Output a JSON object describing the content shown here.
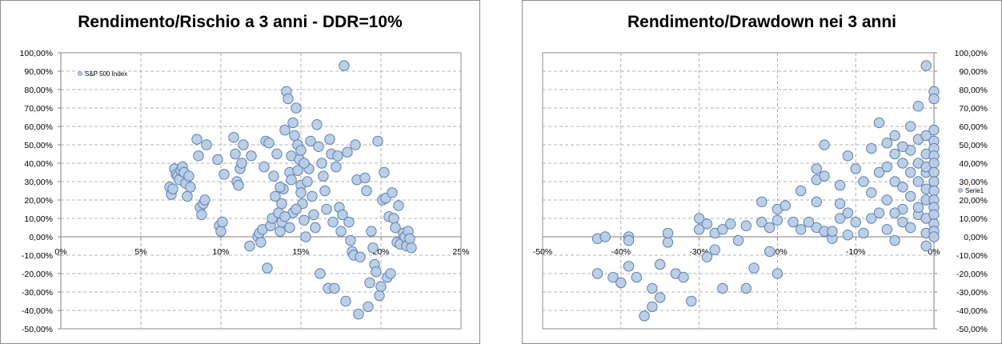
{
  "chart_data": [
    {
      "type": "scatter",
      "title": "Rendimento/Rischio a 3 anni - DDR=10%",
      "xlabel": "",
      "ylabel": "",
      "xlim": [
        0,
        0.25
      ],
      "ylim": [
        -0.5,
        1.0
      ],
      "x_ticks": [
        "0%",
        "5%",
        "10%",
        "15%",
        "20%",
        "25%"
      ],
      "y_ticks": [
        "100,00%",
        "90,00%",
        "80,00%",
        "70,00%",
        "60,00%",
        "50,00%",
        "40,00%",
        "30,00%",
        "20,00%",
        "10,00%",
        "0,00%",
        "-10,00%",
        "-20,00%",
        "-30,00%",
        "-40,00%",
        "-50,00%"
      ],
      "grid": true,
      "legend_position": "top-left",
      "series": [
        {
          "name": "S&P 500 Index",
          "color": "#b8cce4",
          "stroke": "#5a7fb4",
          "points": [
            [
              0.068,
              0.27
            ],
            [
              0.069,
              0.23
            ],
            [
              0.07,
              0.26
            ],
            [
              0.071,
              0.37
            ],
            [
              0.072,
              0.34
            ],
            [
              0.073,
              0.33
            ],
            [
              0.074,
              0.31
            ],
            [
              0.075,
              0.36
            ],
            [
              0.076,
              0.38
            ],
            [
              0.077,
              0.35
            ],
            [
              0.078,
              0.29
            ],
            [
              0.079,
              0.22
            ],
            [
              0.08,
              0.33
            ],
            [
              0.081,
              0.27
            ],
            [
              0.085,
              0.53
            ],
            [
              0.086,
              0.44
            ],
            [
              0.087,
              0.16
            ],
            [
              0.088,
              0.12
            ],
            [
              0.089,
              0.18
            ],
            [
              0.09,
              0.2
            ],
            [
              0.091,
              0.5
            ],
            [
              0.098,
              0.42
            ],
            [
              0.099,
              0.06
            ],
            [
              0.1,
              0.03
            ],
            [
              0.101,
              0.08
            ],
            [
              0.102,
              0.34
            ],
            [
              0.108,
              0.54
            ],
            [
              0.109,
              0.45
            ],
            [
              0.11,
              0.3
            ],
            [
              0.111,
              0.28
            ],
            [
              0.112,
              0.37
            ],
            [
              0.113,
              0.4
            ],
            [
              0.114,
              0.5
            ],
            [
              0.118,
              -0.05
            ],
            [
              0.119,
              0.44
            ],
            [
              0.123,
              0.0
            ],
            [
              0.124,
              0.02
            ],
            [
              0.125,
              -0.03
            ],
            [
              0.126,
              0.04
            ],
            [
              0.127,
              0.38
            ],
            [
              0.128,
              0.52
            ],
            [
              0.129,
              -0.17
            ],
            [
              0.13,
              0.51
            ],
            [
              0.131,
              0.06
            ],
            [
              0.132,
              0.1
            ],
            [
              0.133,
              0.33
            ],
            [
              0.134,
              0.22
            ],
            [
              0.135,
              0.45
            ],
            [
              0.136,
              0.13
            ],
            [
              0.137,
              0.03
            ],
            [
              0.138,
              0.08
            ],
            [
              0.139,
              0.26
            ],
            [
              0.14,
              0.58
            ],
            [
              0.141,
              0.79
            ],
            [
              0.142,
              0.75
            ],
            [
              0.143,
              0.35
            ],
            [
              0.144,
              0.44
            ],
            [
              0.145,
              0.62
            ],
            [
              0.146,
              0.55
            ],
            [
              0.147,
              0.7
            ],
            [
              0.148,
              0.5
            ],
            [
              0.149,
              0.42
            ],
            [
              0.15,
              0.28
            ],
            [
              0.151,
              0.18
            ],
            [
              0.152,
              0.09
            ],
            [
              0.153,
              0.0
            ],
            [
              0.154,
              0.3
            ],
            [
              0.155,
              0.37
            ],
            [
              0.156,
              0.52
            ],
            [
              0.157,
              0.22
            ],
            [
              0.158,
              0.12
            ],
            [
              0.159,
              0.05
            ],
            [
              0.16,
              0.61
            ],
            [
              0.161,
              0.49
            ],
            [
              0.162,
              -0.2
            ],
            [
              0.163,
              0.4
            ],
            [
              0.164,
              0.33
            ],
            [
              0.165,
              0.25
            ],
            [
              0.166,
              0.15
            ],
            [
              0.167,
              -0.28
            ],
            [
              0.168,
              0.53
            ],
            [
              0.169,
              0.45
            ],
            [
              0.17,
              0.08
            ],
            [
              0.171,
              -0.28
            ],
            [
              0.172,
              0.38
            ],
            [
              0.173,
              0.44
            ],
            [
              0.174,
              0.16
            ],
            [
              0.175,
              0.03
            ],
            [
              0.176,
              0.12
            ],
            [
              0.177,
              0.93
            ],
            [
              0.178,
              -0.35
            ],
            [
              0.179,
              0.46
            ],
            [
              0.18,
              0.08
            ],
            [
              0.181,
              -0.02
            ],
            [
              0.182,
              -0.08
            ],
            [
              0.183,
              -0.1
            ],
            [
              0.184,
              0.5
            ],
            [
              0.185,
              0.31
            ],
            [
              0.186,
              -0.42
            ],
            [
              0.187,
              -0.11
            ],
            [
              0.19,
              0.32
            ],
            [
              0.191,
              0.25
            ],
            [
              0.192,
              -0.38
            ],
            [
              0.193,
              -0.25
            ],
            [
              0.194,
              0.03
            ],
            [
              0.195,
              -0.06
            ],
            [
              0.196,
              -0.15
            ],
            [
              0.197,
              -0.19
            ],
            [
              0.198,
              0.52
            ],
            [
              0.199,
              -0.32
            ],
            [
              0.2,
              -0.27
            ],
            [
              0.201,
              0.2
            ],
            [
              0.202,
              0.35
            ],
            [
              0.203,
              0.21
            ],
            [
              0.204,
              -0.22
            ],
            [
              0.205,
              0.11
            ],
            [
              0.206,
              -0.2
            ],
            [
              0.207,
              0.24
            ],
            [
              0.208,
              0.1
            ],
            [
              0.209,
              0.05
            ],
            [
              0.21,
              -0.03
            ],
            [
              0.211,
              0.17
            ],
            [
              0.212,
              -0.04
            ],
            [
              0.214,
              0.02
            ],
            [
              0.215,
              0.0
            ],
            [
              0.216,
              -0.05
            ],
            [
              0.217,
              0.03
            ],
            [
              0.218,
              -0.01
            ],
            [
              0.219,
              -0.06
            ],
            [
              0.145,
              0.13
            ],
            [
              0.14,
              0.11
            ],
            [
              0.138,
              0.18
            ],
            [
              0.143,
              0.05
            ],
            [
              0.147,
              0.15
            ],
            [
              0.15,
              0.47
            ],
            [
              0.152,
              0.4
            ],
            [
              0.137,
              0.27
            ],
            [
              0.144,
              0.31
            ],
            [
              0.148,
              0.36
            ],
            [
              0.15,
              0.24
            ]
          ]
        }
      ]
    },
    {
      "type": "scatter",
      "title": "Rendimento/Drawdown nei 3 anni",
      "xlabel": "",
      "ylabel": "",
      "xlim": [
        -0.5,
        0.0
      ],
      "ylim": [
        -0.5,
        1.0
      ],
      "x_ticks": [
        "-50%",
        "-40%",
        "-30%",
        "-20%",
        "-10%",
        "0%"
      ],
      "y_ticks": [
        "100,00%",
        "90,00%",
        "80,00%",
        "70,00%",
        "60,00%",
        "50,00%",
        "40,00%",
        "30,00%",
        "20,00%",
        "10,00%",
        "0,00%",
        "-10,00%",
        "-20,00%",
        "-30,00%",
        "-40,00%",
        "-50,00%"
      ],
      "grid": true,
      "legend_position": "right",
      "series": [
        {
          "name": "Serie1",
          "color": "#b8cce4",
          "stroke": "#5a7fb4",
          "points": [
            [
              -0.43,
              -0.01
            ],
            [
              -0.42,
              0.0
            ],
            [
              -0.43,
              -0.2
            ],
            [
              -0.41,
              -0.22
            ],
            [
              -0.4,
              -0.25
            ],
            [
              -0.39,
              -0.16
            ],
            [
              -0.39,
              0.0
            ],
            [
              -0.39,
              -0.02
            ],
            [
              -0.38,
              -0.22
            ],
            [
              -0.37,
              -0.43
            ],
            [
              -0.36,
              -0.38
            ],
            [
              -0.36,
              -0.28
            ],
            [
              -0.35,
              -0.33
            ],
            [
              -0.35,
              -0.15
            ],
            [
              -0.34,
              -0.03
            ],
            [
              -0.34,
              0.02
            ],
            [
              -0.33,
              -0.2
            ],
            [
              -0.32,
              -0.22
            ],
            [
              -0.31,
              -0.35
            ],
            [
              -0.3,
              0.04
            ],
            [
              -0.3,
              0.1
            ],
            [
              -0.29,
              0.07
            ],
            [
              -0.29,
              -0.11
            ],
            [
              -0.28,
              -0.07
            ],
            [
              -0.28,
              0.02
            ],
            [
              -0.27,
              0.04
            ],
            [
              -0.27,
              -0.28
            ],
            [
              -0.26,
              0.07
            ],
            [
              -0.25,
              -0.02
            ],
            [
              -0.24,
              -0.28
            ],
            [
              -0.24,
              0.06
            ],
            [
              -0.23,
              -0.17
            ],
            [
              -0.22,
              0.19
            ],
            [
              -0.22,
              0.08
            ],
            [
              -0.21,
              0.05
            ],
            [
              -0.21,
              -0.08
            ],
            [
              -0.2,
              0.09
            ],
            [
              -0.2,
              0.15
            ],
            [
              -0.2,
              -0.2
            ],
            [
              -0.19,
              0.17
            ],
            [
              -0.18,
              0.08
            ],
            [
              -0.17,
              0.25
            ],
            [
              -0.17,
              0.04
            ],
            [
              -0.16,
              0.08
            ],
            [
              -0.15,
              0.05
            ],
            [
              -0.15,
              0.37
            ],
            [
              -0.15,
              0.31
            ],
            [
              -0.15,
              0.19
            ],
            [
              -0.14,
              0.03
            ],
            [
              -0.14,
              0.33
            ],
            [
              -0.14,
              0.5
            ],
            [
              -0.13,
              -0.01
            ],
            [
              -0.13,
              0.03
            ],
            [
              -0.12,
              0.1
            ],
            [
              -0.12,
              0.18
            ],
            [
              -0.12,
              0.28
            ],
            [
              -0.11,
              0.01
            ],
            [
              -0.11,
              0.13
            ],
            [
              -0.11,
              0.44
            ],
            [
              -0.1,
              0.08
            ],
            [
              -0.1,
              0.37
            ],
            [
              -0.09,
              0.3
            ],
            [
              -0.09,
              0.02
            ],
            [
              -0.08,
              0.1
            ],
            [
              -0.08,
              0.24
            ],
            [
              -0.08,
              0.48
            ],
            [
              -0.07,
              0.13
            ],
            [
              -0.07,
              0.35
            ],
            [
              -0.07,
              0.62
            ],
            [
              -0.06,
              0.51
            ],
            [
              -0.06,
              0.2
            ],
            [
              -0.06,
              0.04
            ],
            [
              -0.05,
              -0.02
            ],
            [
              -0.05,
              0.3
            ],
            [
              -0.05,
              0.45
            ],
            [
              -0.05,
              0.55
            ],
            [
              -0.04,
              0.4
            ],
            [
              -0.04,
              0.15
            ],
            [
              -0.04,
              0.08
            ],
            [
              -0.04,
              0.27
            ],
            [
              -0.03,
              0.6
            ],
            [
              -0.03,
              0.35
            ],
            [
              -0.03,
              0.22
            ],
            [
              -0.03,
              0.05
            ],
            [
              -0.03,
              0.47
            ],
            [
              -0.02,
              0.4
            ],
            [
              -0.02,
              0.3
            ],
            [
              -0.02,
              0.12
            ],
            [
              -0.02,
              0.53
            ],
            [
              -0.02,
              0.71
            ],
            [
              -0.01,
              0.93
            ],
            [
              -0.01,
              0.45
            ],
            [
              -0.01,
              0.35
            ],
            [
              -0.01,
              0.2
            ],
            [
              -0.01,
              0.1
            ],
            [
              -0.01,
              0.02
            ],
            [
              -0.01,
              -0.05
            ],
            [
              -0.01,
              0.55
            ],
            [
              -0.01,
              0.38
            ],
            [
              -0.01,
              0.26
            ],
            [
              0.0,
              0.79
            ],
            [
              0.0,
              0.75
            ],
            [
              0.0,
              0.58
            ],
            [
              0.0,
              0.52
            ],
            [
              0.0,
              0.48
            ],
            [
              0.0,
              0.44
            ],
            [
              0.0,
              0.4
            ],
            [
              0.0,
              0.35
            ],
            [
              0.0,
              0.3
            ],
            [
              0.0,
              0.25
            ],
            [
              0.0,
              0.2
            ],
            [
              0.0,
              0.16
            ],
            [
              0.0,
              0.12
            ],
            [
              0.0,
              0.07
            ],
            [
              0.0,
              0.03
            ],
            [
              0.0,
              0.0
            ],
            [
              -0.06,
              0.38
            ],
            [
              -0.04,
              0.49
            ],
            [
              -0.05,
              0.13
            ],
            [
              -0.02,
              0.16
            ]
          ]
        }
      ]
    }
  ]
}
